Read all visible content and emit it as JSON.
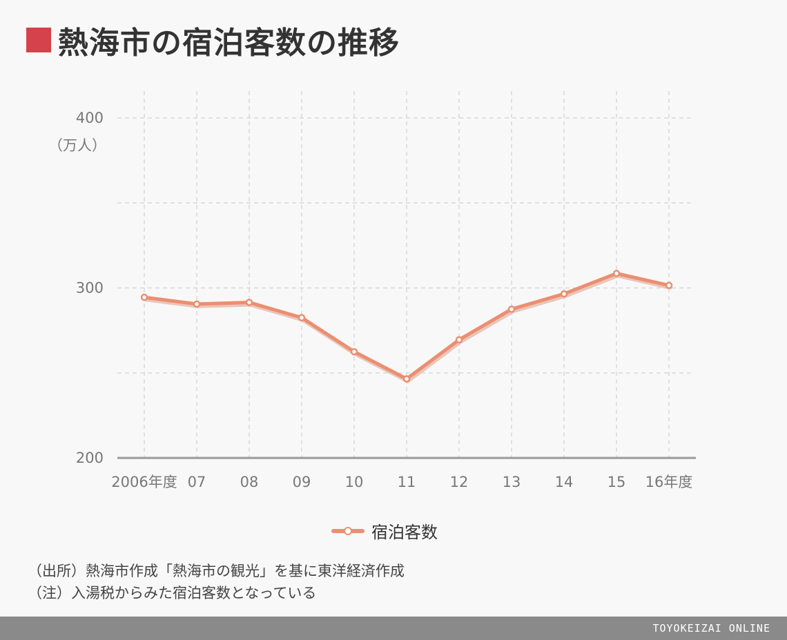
{
  "title": "熱海市の宿泊客数の推移",
  "unit_label": "（万人）",
  "legend_label": "宿泊客数",
  "notes": [
    "（出所）熱海市作成「熱海市の観光」を基に東洋経済作成",
    "（注）入湯税からみた宿泊客数となっている"
  ],
  "brand": "TOYOKEIZAI ONLINE",
  "colors": {
    "accent": "#d6424c",
    "line": "#ec8e70",
    "grid": "#d8d8d8",
    "axis": "#999999"
  },
  "chart_data": {
    "type": "line",
    "categories": [
      "2006年度",
      "07",
      "08",
      "09",
      "10",
      "11",
      "12",
      "13",
      "14",
      "15",
      "16年度"
    ],
    "series": [
      {
        "name": "宿泊客数",
        "values": [
          294.5,
          290.5,
          291.5,
          282.5,
          262.5,
          246.5,
          269.5,
          287.5,
          296.5,
          308.5,
          301.5
        ]
      }
    ],
    "ylim": [
      200,
      400
    ],
    "yticks": [
      200,
      300,
      400
    ],
    "ylabel": "（万人）",
    "grid": true
  }
}
